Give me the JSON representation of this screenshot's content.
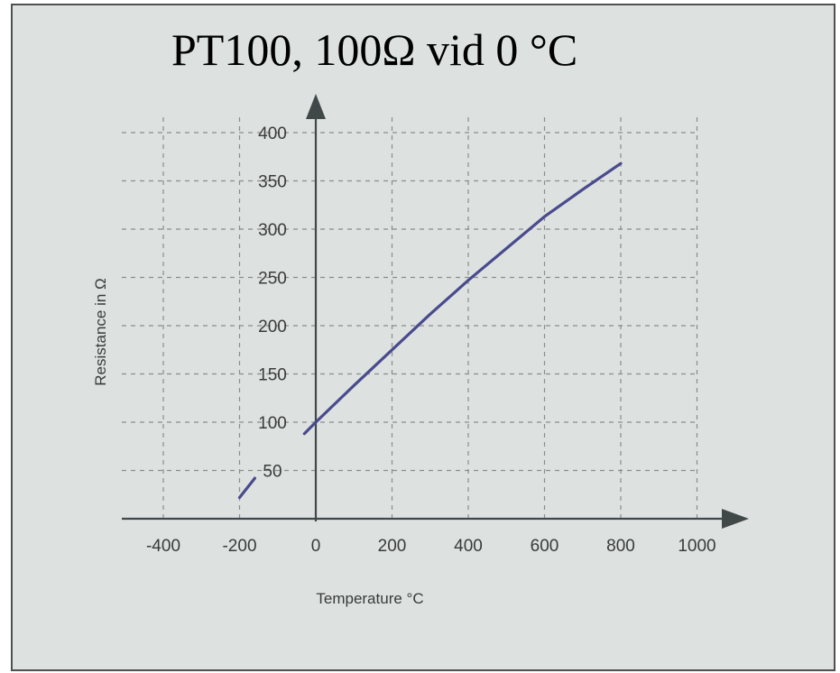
{
  "chart_data": {
    "type": "line",
    "title": "PT100, 100Ω vid 0 °C",
    "xlabel": "Temperature °C",
    "ylabel": "Resistance in Ω",
    "xlim": [
      -500,
      1050
    ],
    "ylim": [
      0,
      420
    ],
    "x_ticks": [
      "-400",
      "-200",
      "0",
      "200",
      "400",
      "600",
      "800",
      "1000"
    ],
    "x_tick_values": [
      -400,
      -200,
      0,
      200,
      400,
      600,
      800,
      1000
    ],
    "y_ticks": [
      "50",
      "100",
      "150",
      "200",
      "250",
      "300",
      "350",
      "400"
    ],
    "y_tick_values": [
      50,
      100,
      150,
      200,
      250,
      300,
      350,
      400
    ],
    "grid": true,
    "line_color": "#4a4a8c",
    "series": [
      {
        "segments": [
          {
            "x": [
              -200,
              -160
            ],
            "y": [
              22,
              42
            ]
          },
          {
            "x": [
              -30,
              0,
              100,
              200,
              300,
              400,
              500,
              600,
              700,
              800
            ],
            "y": [
              88,
              100,
              138,
              175,
              212,
              247,
              280,
              313,
              341,
              368
            ]
          }
        ]
      }
    ]
  }
}
